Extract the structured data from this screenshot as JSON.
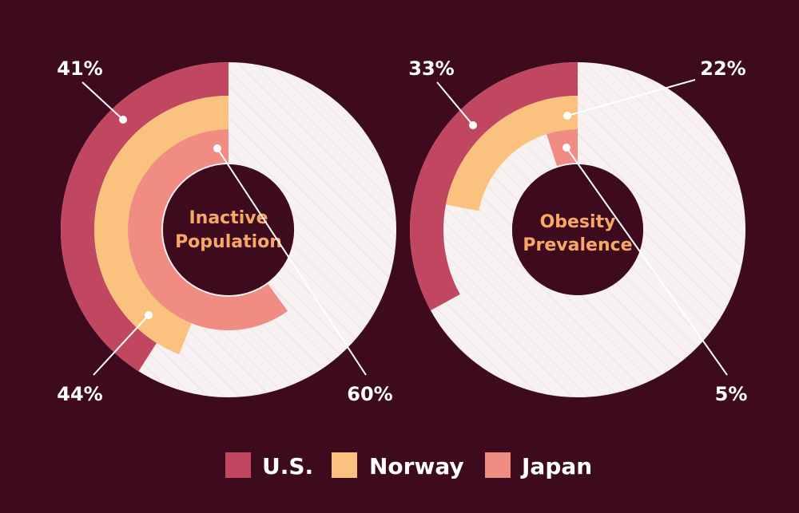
{
  "colors": {
    "background": "#3d0a1e",
    "us": "#c0475f",
    "norway": "#fbc27f",
    "japan": "#f08c82",
    "track": "#f8f1f1",
    "label": "#f7a866"
  },
  "chart_data": [
    {
      "type": "radial-bar",
      "title_lines": [
        "Inactive",
        "Population"
      ],
      "series": [
        {
          "name": "U.S.",
          "value": 41,
          "label": "41%"
        },
        {
          "name": "Norway",
          "value": 44,
          "label": "44%"
        },
        {
          "name": "Japan",
          "value": 60,
          "label": "60%"
        }
      ],
      "max": 100
    },
    {
      "type": "radial-bar",
      "title_lines": [
        "Obesity",
        "Prevalence"
      ],
      "series": [
        {
          "name": "U.S.",
          "value": 33,
          "label": "33%"
        },
        {
          "name": "Norway",
          "value": 22,
          "label": "22%"
        },
        {
          "name": "Japan",
          "value": 5,
          "label": "5%"
        }
      ],
      "max": 100
    }
  ],
  "legend": [
    {
      "name": "U.S.",
      "color": "#c0475f"
    },
    {
      "name": "Norway",
      "color": "#fbc27f"
    },
    {
      "name": "Japan",
      "color": "#f08c82"
    }
  ]
}
